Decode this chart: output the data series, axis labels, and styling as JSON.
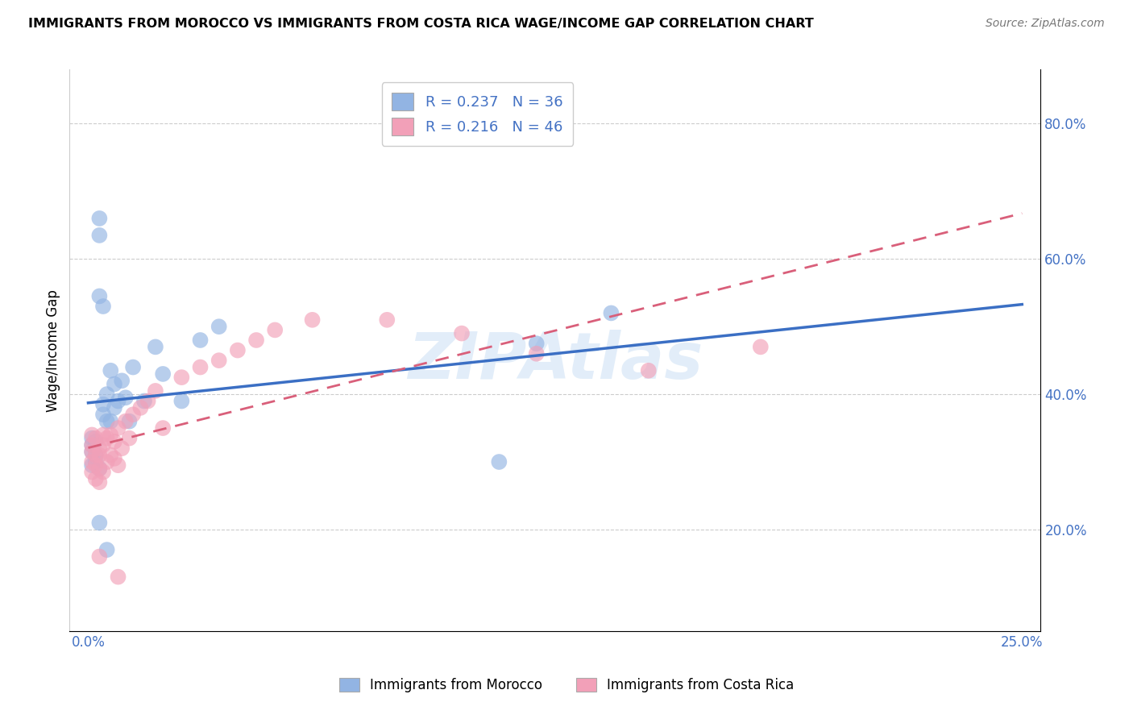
{
  "title": "IMMIGRANTS FROM MOROCCO VS IMMIGRANTS FROM COSTA RICA WAGE/INCOME GAP CORRELATION CHART",
  "source": "Source: ZipAtlas.com",
  "ylabel": "Wage/Income Gap",
  "xlim": [
    0.0,
    0.25
  ],
  "ylim": [
    0.05,
    0.88
  ],
  "xtick_positions": [
    0.0,
    0.25
  ],
  "xtick_labels": [
    "0.0%",
    "25.0%"
  ],
  "ytick_vals_right": [
    0.2,
    0.4,
    0.6,
    0.8
  ],
  "ytick_labels_right": [
    "20.0%",
    "40.0%",
    "60.0%",
    "80.0%"
  ],
  "legend1_label": "R = 0.237   N = 36",
  "legend2_label": "R = 0.216   N = 46",
  "legend_bottom1": "Immigrants from Morocco",
  "legend_bottom2": "Immigrants from Costa Rica",
  "color_morocco": "#92b4e3",
  "color_costarica": "#f2a0b8",
  "color_line_morocco": "#3b6fc4",
  "color_line_costarica": "#d95f7a",
  "watermark_text": "ZIPAtlas",
  "morocco_x": [
    0.001,
    0.001,
    0.001,
    0.001,
    0.002,
    0.002,
    0.002,
    0.003,
    0.003,
    0.003,
    0.003,
    0.004,
    0.004,
    0.004,
    0.005,
    0.005,
    0.006,
    0.006,
    0.007,
    0.007,
    0.008,
    0.009,
    0.01,
    0.011,
    0.012,
    0.015,
    0.018,
    0.02,
    0.025,
    0.03,
    0.035,
    0.12,
    0.14,
    0.003,
    0.005,
    0.11
  ],
  "morocco_y": [
    0.335,
    0.325,
    0.315,
    0.295,
    0.33,
    0.31,
    0.3,
    0.66,
    0.635,
    0.545,
    0.29,
    0.53,
    0.385,
    0.37,
    0.4,
    0.36,
    0.435,
    0.36,
    0.415,
    0.38,
    0.39,
    0.42,
    0.395,
    0.36,
    0.44,
    0.39,
    0.47,
    0.43,
    0.39,
    0.48,
    0.5,
    0.475,
    0.52,
    0.21,
    0.17,
    0.3
  ],
  "costarica_x": [
    0.001,
    0.001,
    0.001,
    0.001,
    0.001,
    0.002,
    0.002,
    0.002,
    0.002,
    0.003,
    0.003,
    0.003,
    0.003,
    0.004,
    0.004,
    0.004,
    0.005,
    0.005,
    0.006,
    0.006,
    0.007,
    0.007,
    0.008,
    0.008,
    0.009,
    0.01,
    0.011,
    0.012,
    0.014,
    0.016,
    0.018,
    0.02,
    0.025,
    0.03,
    0.035,
    0.04,
    0.045,
    0.05,
    0.06,
    0.08,
    0.1,
    0.12,
    0.15,
    0.18,
    0.003,
    0.008
  ],
  "costarica_y": [
    0.34,
    0.325,
    0.315,
    0.3,
    0.285,
    0.335,
    0.31,
    0.295,
    0.275,
    0.32,
    0.31,
    0.29,
    0.27,
    0.34,
    0.325,
    0.285,
    0.335,
    0.3,
    0.34,
    0.31,
    0.33,
    0.305,
    0.35,
    0.295,
    0.32,
    0.36,
    0.335,
    0.37,
    0.38,
    0.39,
    0.405,
    0.35,
    0.425,
    0.44,
    0.45,
    0.465,
    0.48,
    0.495,
    0.51,
    0.51,
    0.49,
    0.46,
    0.435,
    0.47,
    0.16,
    0.13
  ]
}
